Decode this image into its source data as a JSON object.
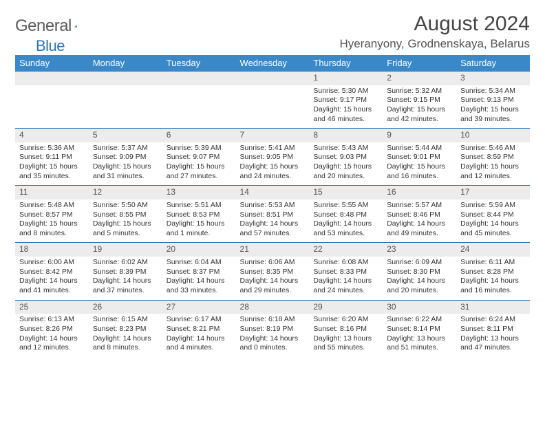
{
  "logo_general": "General",
  "logo_blue": "Blue",
  "title": "August 2024",
  "location": "Hyeranyony, Grodnenskaya, Belarus",
  "colors": {
    "header_bg": "#3b88c9",
    "rule": "#2a74bd",
    "daynum_bg": "#ececec"
  },
  "day_headers": [
    "Sunday",
    "Monday",
    "Tuesday",
    "Wednesday",
    "Thursday",
    "Friday",
    "Saturday"
  ],
  "weeks": [
    [
      null,
      null,
      null,
      null,
      {
        "n": "1",
        "sr": "5:30 AM",
        "ss": "9:17 PM",
        "dl": "15 hours and 46 minutes."
      },
      {
        "n": "2",
        "sr": "5:32 AM",
        "ss": "9:15 PM",
        "dl": "15 hours and 42 minutes."
      },
      {
        "n": "3",
        "sr": "5:34 AM",
        "ss": "9:13 PM",
        "dl": "15 hours and 39 minutes."
      }
    ],
    [
      {
        "n": "4",
        "sr": "5:36 AM",
        "ss": "9:11 PM",
        "dl": "15 hours and 35 minutes."
      },
      {
        "n": "5",
        "sr": "5:37 AM",
        "ss": "9:09 PM",
        "dl": "15 hours and 31 minutes."
      },
      {
        "n": "6",
        "sr": "5:39 AM",
        "ss": "9:07 PM",
        "dl": "15 hours and 27 minutes."
      },
      {
        "n": "7",
        "sr": "5:41 AM",
        "ss": "9:05 PM",
        "dl": "15 hours and 24 minutes."
      },
      {
        "n": "8",
        "sr": "5:43 AM",
        "ss": "9:03 PM",
        "dl": "15 hours and 20 minutes."
      },
      {
        "n": "9",
        "sr": "5:44 AM",
        "ss": "9:01 PM",
        "dl": "15 hours and 16 minutes."
      },
      {
        "n": "10",
        "sr": "5:46 AM",
        "ss": "8:59 PM",
        "dl": "15 hours and 12 minutes."
      }
    ],
    [
      {
        "n": "11",
        "sr": "5:48 AM",
        "ss": "8:57 PM",
        "dl": "15 hours and 8 minutes."
      },
      {
        "n": "12",
        "sr": "5:50 AM",
        "ss": "8:55 PM",
        "dl": "15 hours and 5 minutes."
      },
      {
        "n": "13",
        "sr": "5:51 AM",
        "ss": "8:53 PM",
        "dl": "15 hours and 1 minute."
      },
      {
        "n": "14",
        "sr": "5:53 AM",
        "ss": "8:51 PM",
        "dl": "14 hours and 57 minutes."
      },
      {
        "n": "15",
        "sr": "5:55 AM",
        "ss": "8:48 PM",
        "dl": "14 hours and 53 minutes."
      },
      {
        "n": "16",
        "sr": "5:57 AM",
        "ss": "8:46 PM",
        "dl": "14 hours and 49 minutes."
      },
      {
        "n": "17",
        "sr": "5:59 AM",
        "ss": "8:44 PM",
        "dl": "14 hours and 45 minutes."
      }
    ],
    [
      {
        "n": "18",
        "sr": "6:00 AM",
        "ss": "8:42 PM",
        "dl": "14 hours and 41 minutes."
      },
      {
        "n": "19",
        "sr": "6:02 AM",
        "ss": "8:39 PM",
        "dl": "14 hours and 37 minutes."
      },
      {
        "n": "20",
        "sr": "6:04 AM",
        "ss": "8:37 PM",
        "dl": "14 hours and 33 minutes."
      },
      {
        "n": "21",
        "sr": "6:06 AM",
        "ss": "8:35 PM",
        "dl": "14 hours and 29 minutes."
      },
      {
        "n": "22",
        "sr": "6:08 AM",
        "ss": "8:33 PM",
        "dl": "14 hours and 24 minutes."
      },
      {
        "n": "23",
        "sr": "6:09 AM",
        "ss": "8:30 PM",
        "dl": "14 hours and 20 minutes."
      },
      {
        "n": "24",
        "sr": "6:11 AM",
        "ss": "8:28 PM",
        "dl": "14 hours and 16 minutes."
      }
    ],
    [
      {
        "n": "25",
        "sr": "6:13 AM",
        "ss": "8:26 PM",
        "dl": "14 hours and 12 minutes."
      },
      {
        "n": "26",
        "sr": "6:15 AM",
        "ss": "8:23 PM",
        "dl": "14 hours and 8 minutes."
      },
      {
        "n": "27",
        "sr": "6:17 AM",
        "ss": "8:21 PM",
        "dl": "14 hours and 4 minutes."
      },
      {
        "n": "28",
        "sr": "6:18 AM",
        "ss": "8:19 PM",
        "dl": "14 hours and 0 minutes."
      },
      {
        "n": "29",
        "sr": "6:20 AM",
        "ss": "8:16 PM",
        "dl": "13 hours and 55 minutes."
      },
      {
        "n": "30",
        "sr": "6:22 AM",
        "ss": "8:14 PM",
        "dl": "13 hours and 51 minutes."
      },
      {
        "n": "31",
        "sr": "6:24 AM",
        "ss": "8:11 PM",
        "dl": "13 hours and 47 minutes."
      }
    ]
  ],
  "labels": {
    "sunrise": "Sunrise:",
    "sunset": "Sunset:",
    "daylight": "Daylight:"
  }
}
